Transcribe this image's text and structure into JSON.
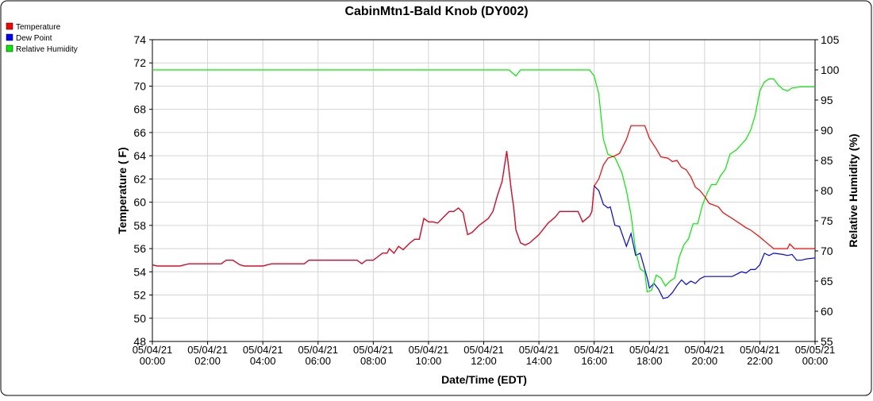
{
  "chart_data": {
    "type": "line",
    "title": "CabinMtn1-Bald Knob (DY002)",
    "x_label": "Date/Time (EDT)",
    "y_label": "Temperature ( F)",
    "y2_label": "Relative Humidity (%)",
    "xlim": [
      "05/04/21 00:00",
      "05/05/21 00:00"
    ],
    "xticks": [
      {
        "value": "05/04/21 00:00",
        "label": [
          "05/04/21",
          "00:00"
        ]
      },
      {
        "value": "05/04/21 02:00",
        "label": [
          "05/04/21",
          "02:00"
        ]
      },
      {
        "value": "05/04/21 04:00",
        "label": [
          "05/04/21",
          "04:00"
        ]
      },
      {
        "value": "05/04/21 06:00",
        "label": [
          "05/04/21",
          "06:00"
        ]
      },
      {
        "value": "05/04/21 08:00",
        "label": [
          "05/04/21",
          "08:00"
        ]
      },
      {
        "value": "05/04/21 10:00",
        "label": [
          "05/04/21",
          "10:00"
        ]
      },
      {
        "value": "05/04/21 12:00",
        "label": [
          "05/04/21",
          "12:00"
        ]
      },
      {
        "value": "05/04/21 14:00",
        "label": [
          "05/04/21",
          "14:00"
        ]
      },
      {
        "value": "05/04/21 16:00",
        "label": [
          "05/04/21",
          "16:00"
        ]
      },
      {
        "value": "05/04/21 18:00",
        "label": [
          "05/04/21",
          "18:00"
        ]
      },
      {
        "value": "05/04/21 20:00",
        "label": [
          "05/04/21",
          "20:00"
        ]
      },
      {
        "value": "05/04/21 22:00",
        "label": [
          "05/04/21",
          "22:00"
        ]
      },
      {
        "value": "05/05/21 00:00",
        "label": [
          "05/05/21",
          "00:00"
        ]
      }
    ],
    "ylim": [
      48,
      74
    ],
    "yticks": [
      48,
      50,
      52,
      54,
      56,
      58,
      60,
      62,
      64,
      66,
      68,
      70,
      72,
      74
    ],
    "y2lim": [
      55,
      105
    ],
    "y2ticks": [
      55,
      60,
      65,
      70,
      75,
      80,
      85,
      90,
      95,
      100,
      105
    ],
    "grid": true,
    "legend": "top-left",
    "series": [
      {
        "name": "Temperature",
        "color": "#ff0000",
        "x": [
          "05/04/21 00:00",
          "05/04/21 00:10",
          "05/04/21 01:00",
          "05/04/21 01:20",
          "05/04/21 02:00",
          "05/04/21 02:30",
          "05/04/21 02:40",
          "05/04/21 02:55",
          "05/04/21 03:10",
          "05/04/21 03:20",
          "05/04/21 04:00",
          "05/04/21 04:20",
          "05/04/21 05:00",
          "05/04/21 05:30",
          "05/04/21 05:40",
          "05/04/21 06:00",
          "05/04/21 07:00",
          "05/04/21 07:25",
          "05/04/21 07:35",
          "05/04/21 07:45",
          "05/04/21 08:00",
          "05/04/21 08:10",
          "05/04/21 08:20",
          "05/04/21 08:30",
          "05/04/21 08:35",
          "05/04/21 08:45",
          "05/04/21 08:55",
          "05/04/21 09:05",
          "05/04/21 09:20",
          "05/04/21 09:30",
          "05/04/21 09:40",
          "05/04/21 09:50",
          "05/04/21 10:00",
          "05/04/21 10:10",
          "05/04/21 10:20",
          "05/04/21 10:35",
          "05/04/21 10:45",
          "05/04/21 10:55",
          "05/04/21 11:05",
          "05/04/21 11:15",
          "05/04/21 11:25",
          "05/04/21 11:35",
          "05/04/21 11:50",
          "05/04/21 12:00",
          "05/04/21 12:10",
          "05/04/21 12:20",
          "05/04/21 12:30",
          "05/04/21 12:40",
          "05/04/21 12:50",
          "05/04/21 13:00",
          "05/04/21 13:05",
          "05/04/21 13:10",
          "05/04/21 13:20",
          "05/04/21 13:30",
          "05/04/21 13:40",
          "05/04/21 14:00",
          "05/04/21 14:20",
          "05/04/21 14:35",
          "05/04/21 14:45",
          "05/04/21 15:25",
          "05/04/21 15:35",
          "05/04/21 15:50",
          "05/04/21 15:55",
          "05/04/21 16:00",
          "05/04/21 16:10",
          "05/04/21 16:20",
          "05/04/21 16:30",
          "05/04/21 16:45",
          "05/04/21 16:55",
          "05/04/21 17:10",
          "05/04/21 17:20",
          "05/04/21 17:50",
          "05/04/21 18:00",
          "05/04/21 18:15",
          "05/04/21 18:25",
          "05/04/21 18:40",
          "05/04/21 18:50",
          "05/04/21 19:00",
          "05/04/21 19:10",
          "05/04/21 19:20",
          "05/04/21 19:30",
          "05/04/21 19:40",
          "05/04/21 19:50",
          "05/04/21 20:00",
          "05/04/21 20:10",
          "05/04/21 20:30",
          "05/04/21 20:40",
          "05/04/21 21:00",
          "05/04/21 21:15",
          "05/04/21 21:30",
          "05/04/21 21:40",
          "05/04/21 22:00",
          "05/04/21 22:15",
          "05/04/21 22:30",
          "05/04/21 22:50",
          "05/04/21 23:00",
          "05/04/21 23:05",
          "05/04/21 23:15",
          "05/05/21 00:00"
        ],
        "values": [
          54.6,
          54.5,
          54.5,
          54.7,
          54.7,
          54.7,
          55.0,
          55.0,
          54.6,
          54.5,
          54.5,
          54.7,
          54.7,
          54.7,
          55.0,
          55.0,
          55.0,
          55.0,
          54.7,
          55.0,
          55.0,
          55.3,
          55.6,
          55.6,
          56.0,
          55.6,
          56.2,
          55.9,
          56.5,
          56.8,
          56.8,
          58.6,
          58.3,
          58.3,
          58.2,
          58.8,
          59.2,
          59.2,
          59.5,
          59.1,
          57.2,
          57.4,
          58.0,
          58.3,
          58.6,
          59.2,
          60.6,
          61.8,
          64.4,
          61.0,
          59.6,
          57.6,
          56.5,
          56.3,
          56.5,
          57.2,
          58.2,
          58.7,
          59.2,
          59.2,
          58.3,
          58.8,
          59.2,
          61.4,
          62.0,
          63.2,
          63.8,
          64.0,
          64.2,
          65.4,
          66.6,
          66.6,
          65.5,
          64.6,
          63.9,
          63.8,
          63.5,
          63.6,
          63.0,
          62.8,
          62.2,
          61.3,
          61.0,
          60.5,
          59.9,
          59.6,
          59.1,
          58.6,
          58.2,
          57.8,
          57.6,
          57.0,
          56.5,
          56.0,
          56.0,
          56.0,
          56.4,
          56.0,
          56.0
        ]
      },
      {
        "name": "Dew Point",
        "color": "#0000ff",
        "x": [
          "05/04/21 00:00",
          "05/04/21 00:10",
          "05/04/21 01:00",
          "05/04/21 01:20",
          "05/04/21 02:00",
          "05/04/21 02:30",
          "05/04/21 02:40",
          "05/04/21 02:55",
          "05/04/21 03:10",
          "05/04/21 03:20",
          "05/04/21 04:00",
          "05/04/21 04:20",
          "05/04/21 05:00",
          "05/04/21 05:30",
          "05/04/21 05:40",
          "05/04/21 06:00",
          "05/04/21 07:00",
          "05/04/21 07:25",
          "05/04/21 07:35",
          "05/04/21 07:45",
          "05/04/21 08:00",
          "05/04/21 08:10",
          "05/04/21 08:20",
          "05/04/21 08:30",
          "05/04/21 08:35",
          "05/04/21 08:45",
          "05/04/21 08:55",
          "05/04/21 09:05",
          "05/04/21 09:20",
          "05/04/21 09:30",
          "05/04/21 09:40",
          "05/04/21 09:50",
          "05/04/21 10:00",
          "05/04/21 10:10",
          "05/04/21 10:20",
          "05/04/21 10:35",
          "05/04/21 10:45",
          "05/04/21 10:55",
          "05/04/21 11:05",
          "05/04/21 11:15",
          "05/04/21 11:25",
          "05/04/21 11:35",
          "05/04/21 11:50",
          "05/04/21 12:00",
          "05/04/21 12:10",
          "05/04/21 12:20",
          "05/04/21 12:30",
          "05/04/21 12:40",
          "05/04/21 12:50",
          "05/04/21 13:00",
          "05/04/21 13:05",
          "05/04/21 13:10",
          "05/04/21 13:20",
          "05/04/21 13:30",
          "05/04/21 13:40",
          "05/04/21 14:00",
          "05/04/21 14:20",
          "05/04/21 14:35",
          "05/04/21 14:45",
          "05/04/21 15:25",
          "05/04/21 15:35",
          "05/04/21 15:50",
          "05/04/21 15:55",
          "05/04/21 16:00",
          "05/04/21 16:10",
          "05/04/21 16:20",
          "05/04/21 16:30",
          "05/04/21 16:35",
          "05/04/21 16:45",
          "05/04/21 16:55",
          "05/04/21 17:10",
          "05/04/21 17:20",
          "05/04/21 17:30",
          "05/04/21 17:40",
          "05/04/21 17:55",
          "05/04/21 18:00",
          "05/04/21 18:10",
          "05/04/21 18:20",
          "05/04/21 18:30",
          "05/04/21 18:40",
          "05/04/21 18:50",
          "05/04/21 19:00",
          "05/04/21 19:10",
          "05/04/21 19:20",
          "05/04/21 19:30",
          "05/04/21 19:40",
          "05/04/21 19:50",
          "05/04/21 20:00",
          "05/04/21 20:30",
          "05/04/21 21:00",
          "05/04/21 21:20",
          "05/04/21 21:30",
          "05/04/21 21:40",
          "05/04/21 21:50",
          "05/04/21 22:00",
          "05/04/21 22:10",
          "05/04/21 22:20",
          "05/04/21 22:30",
          "05/04/21 22:50",
          "05/04/21 23:00",
          "05/04/21 23:10",
          "05/04/21 23:20",
          "05/04/21 23:30",
          "05/04/21 23:40",
          "05/05/21 00:00"
        ],
        "values": [
          54.6,
          54.5,
          54.5,
          54.7,
          54.7,
          54.7,
          55.0,
          55.0,
          54.6,
          54.5,
          54.5,
          54.7,
          54.7,
          54.7,
          55.0,
          55.0,
          55.0,
          55.0,
          54.7,
          55.0,
          55.0,
          55.3,
          55.6,
          55.6,
          56.0,
          55.6,
          56.2,
          55.9,
          56.5,
          56.8,
          56.8,
          58.6,
          58.3,
          58.3,
          58.2,
          58.8,
          59.2,
          59.2,
          59.5,
          59.1,
          57.2,
          57.4,
          58.0,
          58.3,
          58.6,
          59.2,
          60.6,
          61.8,
          64.4,
          61.0,
          59.6,
          57.6,
          56.5,
          56.3,
          56.5,
          57.2,
          58.2,
          58.7,
          59.2,
          59.2,
          58.3,
          58.8,
          59.2,
          61.4,
          61.0,
          59.8,
          59.5,
          59.6,
          58.0,
          57.9,
          56.2,
          57.3,
          55.4,
          55.6,
          53.5,
          52.6,
          53.0,
          52.5,
          51.7,
          51.8,
          52.2,
          52.8,
          53.3,
          52.9,
          53.2,
          53.0,
          53.4,
          53.6,
          53.6,
          53.6,
          54.0,
          53.9,
          54.2,
          54.2,
          54.6,
          55.6,
          55.4,
          55.6,
          55.5,
          55.4,
          55.5,
          55.0,
          55.0,
          55.1,
          55.2
        ]
      },
      {
        "name": "Relative Humidity",
        "color": "#00ee00",
        "axis": "y2",
        "x": [
          "05/04/21 00:00",
          "05/04/21 12:55",
          "05/04/21 13:10",
          "05/04/21 13:20",
          "05/04/21 15:50",
          "05/04/21 16:00",
          "05/04/21 16:10",
          "05/04/21 16:20",
          "05/04/21 16:30",
          "05/04/21 16:45",
          "05/04/21 17:00",
          "05/04/21 17:10",
          "05/04/21 17:20",
          "05/04/21 17:30",
          "05/04/21 17:40",
          "05/04/21 17:50",
          "05/04/21 17:55",
          "05/04/21 18:05",
          "05/04/21 18:15",
          "05/04/21 18:25",
          "05/04/21 18:35",
          "05/04/21 18:45",
          "05/04/21 18:55",
          "05/04/21 19:05",
          "05/04/21 19:15",
          "05/04/21 19:25",
          "05/04/21 19:35",
          "05/04/21 19:45",
          "05/04/21 19:55",
          "05/04/21 20:05",
          "05/04/21 20:15",
          "05/04/21 20:25",
          "05/04/21 20:35",
          "05/04/21 20:45",
          "05/04/21 20:55",
          "05/04/21 21:10",
          "05/04/21 21:30",
          "05/04/21 21:40",
          "05/04/21 21:50",
          "05/04/21 22:00",
          "05/04/21 22:10",
          "05/04/21 22:20",
          "05/04/21 22:30",
          "05/04/21 22:40",
          "05/04/21 22:50",
          "05/04/21 23:00",
          "05/04/21 23:10",
          "05/04/21 23:30",
          "05/05/21 00:00"
        ],
        "values": [
          100,
          100,
          99.0,
          100,
          100,
          99,
          96,
          88.5,
          86,
          85.5,
          83,
          80,
          76,
          70,
          67,
          66.5,
          63.2,
          63.5,
          66.0,
          65.5,
          64.2,
          65,
          65.5,
          69,
          71,
          72,
          74.5,
          74.5,
          77.5,
          79.5,
          81,
          81,
          82.5,
          83.5,
          86,
          86.8,
          88.5,
          90,
          92.5,
          96.5,
          98,
          98.5,
          98.5,
          97.5,
          96.8,
          96.5,
          97,
          97.2,
          97.2
        ]
      }
    ]
  }
}
